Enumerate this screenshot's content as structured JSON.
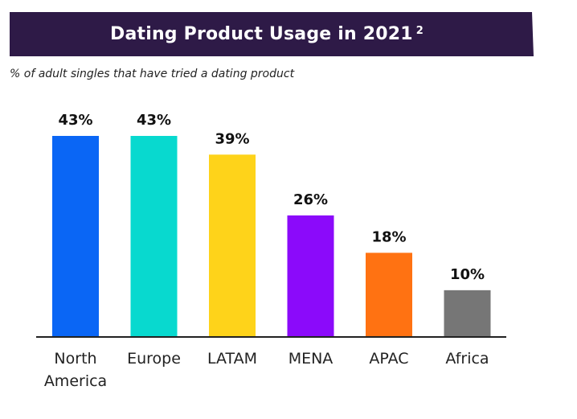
{
  "header": {
    "title": "Dating Product Usage in 2021",
    "title_superscript": "2",
    "subtitle": "% of adult singles that have tried a dating product",
    "banner_color": "#2e1a47"
  },
  "chart_data": {
    "type": "bar",
    "categories": [
      [
        "North",
        "America"
      ],
      [
        "Europe"
      ],
      [
        "LATAM"
      ],
      [
        "MENA"
      ],
      [
        "APAC"
      ],
      [
        "Africa"
      ]
    ],
    "values": [
      43,
      43,
      39,
      26,
      18,
      10
    ],
    "value_labels": [
      "43%",
      "43%",
      "39%",
      "26%",
      "18%",
      "10%"
    ],
    "colors": [
      "#0a66f5",
      "#08d9cf",
      "#fed31a",
      "#8b0afa",
      "#ff7212",
      "#767676"
    ],
    "title": "Dating Product Usage in 2021",
    "ylim": [
      0,
      43
    ],
    "grid": false
  }
}
